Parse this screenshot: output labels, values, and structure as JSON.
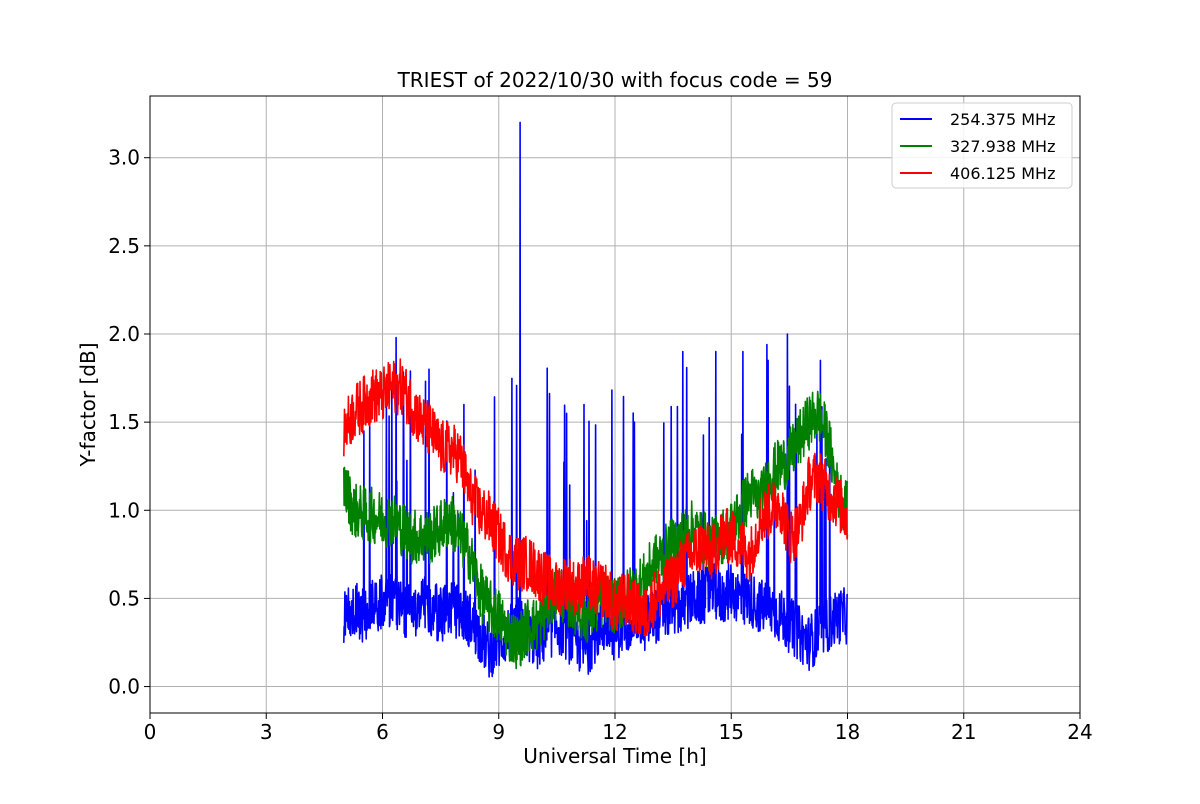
{
  "chart_data": {
    "type": "line",
    "title": "TRIEST of 2022/10/30 with focus code = 59",
    "xlabel": "Universal Time [h]",
    "ylabel": "Y-factor [dB]",
    "xlim": [
      0,
      24
    ],
    "ylim": [
      -0.15,
      3.35
    ],
    "xticks": [
      0,
      3,
      6,
      9,
      12,
      15,
      18,
      21,
      24
    ],
    "xtick_labels": [
      "0",
      "3",
      "6",
      "9",
      "12",
      "15",
      "18",
      "21",
      "24"
    ],
    "yticks": [
      0.0,
      0.5,
      1.0,
      1.5,
      2.0,
      2.5,
      3.0
    ],
    "ytick_labels": [
      "0.0",
      "0.5",
      "1.0",
      "1.5",
      "2.0",
      "2.5",
      "3.0"
    ],
    "grid": true,
    "legend_position": "top-right",
    "series": [
      {
        "name": "254.375 MHz",
        "color": "#0000ff",
        "x": [
          5.0,
          5.25,
          5.5,
          5.75,
          6.0,
          6.25,
          6.5,
          6.75,
          7.0,
          7.25,
          7.5,
          7.75,
          8.0,
          8.25,
          8.5,
          8.75,
          9.0,
          9.25,
          9.5,
          9.75,
          10.0,
          10.25,
          10.5,
          10.75,
          11.0,
          11.25,
          11.5,
          11.75,
          12.0,
          12.25,
          12.5,
          12.75,
          13.0,
          13.25,
          13.5,
          13.75,
          14.0,
          14.25,
          14.5,
          14.75,
          15.0,
          15.25,
          15.5,
          15.75,
          16.0,
          16.25,
          16.5,
          16.75,
          17.0,
          17.25,
          17.5,
          17.75,
          18.0
        ],
        "y": [
          0.4,
          0.45,
          0.4,
          0.45,
          0.48,
          0.5,
          0.45,
          0.42,
          0.48,
          0.45,
          0.4,
          0.45,
          0.42,
          0.38,
          0.3,
          0.2,
          0.25,
          0.3,
          0.35,
          0.3,
          0.25,
          0.3,
          0.35,
          0.3,
          0.25,
          0.2,
          0.3,
          0.35,
          0.3,
          0.35,
          0.4,
          0.35,
          0.4,
          0.42,
          0.45,
          0.45,
          0.5,
          0.5,
          0.55,
          0.5,
          0.55,
          0.5,
          0.5,
          0.45,
          0.45,
          0.4,
          0.35,
          0.3,
          0.25,
          0.3,
          0.35,
          0.4,
          0.4
        ],
        "spikes": [
          [
            6.35,
            1.98
          ],
          [
            7.2,
            1.8
          ],
          [
            8.1,
            1.6
          ],
          [
            9.55,
            3.2
          ],
          [
            10.75,
            1.55
          ],
          [
            11.2,
            1.6
          ],
          [
            12.5,
            1.5
          ],
          [
            13.75,
            1.9
          ],
          [
            14.6,
            1.9
          ],
          [
            15.3,
            1.9
          ],
          [
            15.95,
            1.85
          ],
          [
            16.45,
            2.0
          ],
          [
            17.3,
            1.85
          ]
        ]
      },
      {
        "name": "327.938 MHz",
        "color": "#008000",
        "x": [
          5.0,
          5.25,
          5.5,
          5.75,
          6.0,
          6.25,
          6.5,
          6.75,
          7.0,
          7.25,
          7.5,
          7.75,
          8.0,
          8.25,
          8.5,
          8.75,
          9.0,
          9.25,
          9.5,
          9.75,
          10.0,
          10.25,
          10.5,
          10.75,
          11.0,
          11.25,
          11.5,
          11.75,
          12.0,
          12.25,
          12.5,
          12.75,
          13.0,
          13.25,
          13.5,
          13.75,
          14.0,
          14.25,
          14.5,
          14.75,
          15.0,
          15.25,
          15.5,
          15.75,
          16.0,
          16.25,
          16.5,
          16.75,
          17.0,
          17.25,
          17.5,
          17.75,
          18.0
        ],
        "y": [
          1.15,
          1.0,
          0.98,
          0.97,
          0.95,
          0.95,
          0.9,
          0.85,
          0.85,
          0.85,
          0.9,
          0.95,
          0.85,
          0.75,
          0.55,
          0.45,
          0.4,
          0.3,
          0.25,
          0.35,
          0.35,
          0.45,
          0.55,
          0.5,
          0.45,
          0.4,
          0.45,
          0.5,
          0.45,
          0.5,
          0.55,
          0.6,
          0.7,
          0.75,
          0.8,
          0.85,
          0.9,
          0.85,
          0.8,
          0.85,
          0.9,
          1.0,
          1.1,
          1.05,
          1.2,
          1.25,
          1.3,
          1.4,
          1.5,
          1.55,
          1.4,
          1.1,
          1.0
        ]
      },
      {
        "name": "406.125 MHz",
        "color": "#ff0000",
        "x": [
          5.0,
          5.25,
          5.5,
          5.75,
          6.0,
          6.25,
          6.5,
          6.75,
          7.0,
          7.25,
          7.5,
          7.75,
          8.0,
          8.25,
          8.5,
          8.75,
          9.0,
          9.25,
          9.5,
          9.75,
          10.0,
          10.25,
          10.5,
          10.75,
          11.0,
          11.25,
          11.5,
          11.75,
          12.0,
          12.25,
          12.5,
          12.75,
          13.0,
          13.25,
          13.5,
          13.75,
          14.0,
          14.25,
          14.5,
          14.75,
          15.0,
          15.25,
          15.5,
          15.75,
          16.0,
          16.25,
          16.5,
          16.75,
          17.0,
          17.25,
          17.5,
          17.75,
          18.0
        ],
        "y": [
          1.45,
          1.55,
          1.6,
          1.65,
          1.65,
          1.7,
          1.7,
          1.6,
          1.5,
          1.45,
          1.35,
          1.35,
          1.3,
          1.1,
          1.0,
          0.95,
          0.85,
          0.75,
          0.7,
          0.7,
          0.65,
          0.6,
          0.55,
          0.6,
          0.55,
          0.6,
          0.55,
          0.55,
          0.45,
          0.5,
          0.45,
          0.4,
          0.5,
          0.55,
          0.6,
          0.7,
          0.75,
          0.8,
          0.75,
          0.85,
          0.85,
          0.8,
          0.75,
          0.95,
          1.0,
          1.05,
          0.85,
          0.9,
          1.15,
          1.2,
          1.1,
          1.05,
          0.95
        ]
      }
    ]
  }
}
